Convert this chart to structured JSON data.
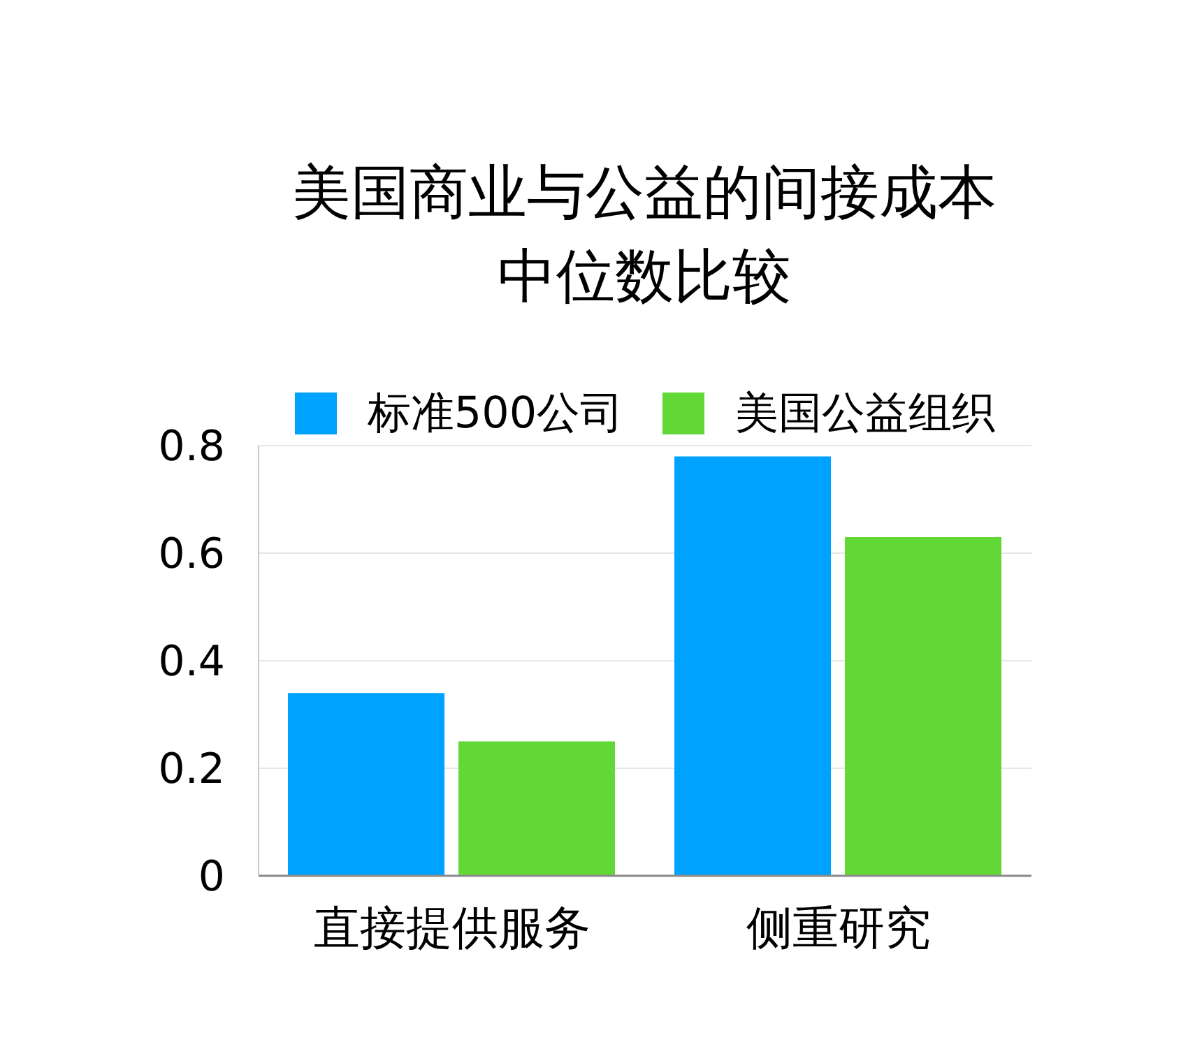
{
  "chart_data": {
    "type": "bar",
    "title": "美国商业与公益的间接成本中位数比较",
    "categories": [
      "直接提供服务",
      "侧重研究"
    ],
    "series": [
      {
        "name": "标准500公司",
        "color": "#00a2ff",
        "values": [
          0.34,
          0.78
        ]
      },
      {
        "name": "美国公益组织",
        "color": "#61d836",
        "values": [
          0.25,
          0.63
        ]
      }
    ],
    "ylim": [
      0,
      0.8
    ],
    "yticks": [
      0,
      0.2,
      0.4,
      0.6,
      0.8
    ],
    "grid": "y",
    "legend": "top"
  }
}
